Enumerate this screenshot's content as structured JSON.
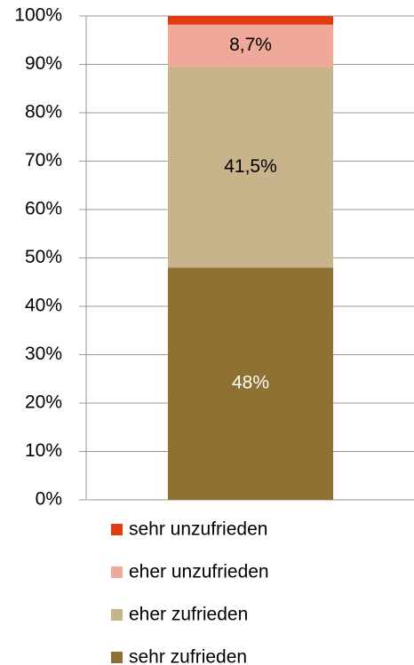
{
  "chart_data": {
    "type": "stacked_bar",
    "categories": [
      null
    ],
    "series": [
      {
        "name": "sehr zufrieden",
        "color": "#8e7130",
        "values": [
          48
        ],
        "value_labels": [
          "48%"
        ]
      },
      {
        "name": "eher zufrieden",
        "color": "#c8b48a",
        "values": [
          41.5
        ],
        "value_labels": [
          "41,5%"
        ]
      },
      {
        "name": "eher unzufrieden",
        "color": "#f0a898",
        "values": [
          8.7
        ],
        "value_labels": [
          "8,7%"
        ]
      },
      {
        "name": "sehr unzufrieden",
        "color": "#e03c10",
        "values": [
          1.8
        ]
      }
    ],
    "ylim": [
      0,
      100
    ],
    "yticks": [
      {
        "value": 0,
        "label": "0%"
      },
      {
        "value": 10,
        "label": "10%"
      },
      {
        "value": 20,
        "label": "20%"
      },
      {
        "value": 30,
        "label": "30%"
      },
      {
        "value": 40,
        "label": "40%"
      },
      {
        "value": 50,
        "label": "50%"
      },
      {
        "value": 60,
        "label": "60%"
      },
      {
        "value": 70,
        "label": "70%"
      },
      {
        "value": 80,
        "label": "80%"
      },
      {
        "value": 90,
        "label": "90%"
      },
      {
        "value": 100,
        "label": "100%"
      }
    ],
    "grid": true,
    "legend": "bottom"
  }
}
